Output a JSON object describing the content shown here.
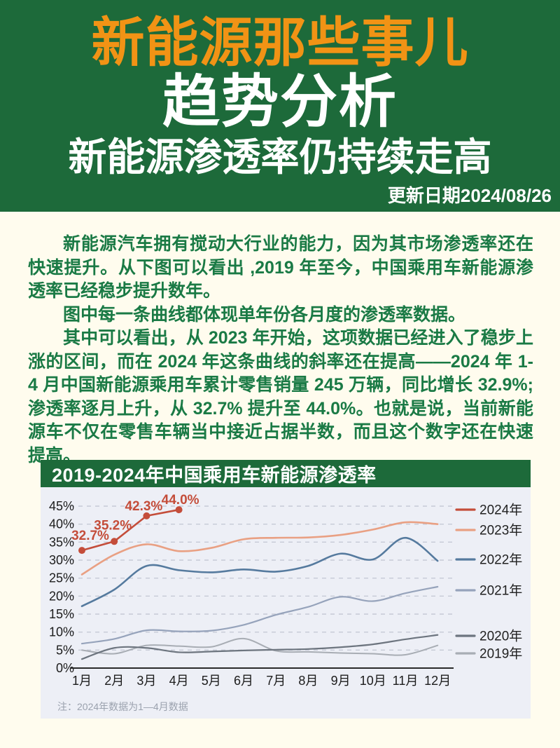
{
  "header": {
    "brand": "新能源那些事儿",
    "title": "趋势分析",
    "subtitle": "新能源渗透率仍持续走高",
    "update_date": "更新日期2024/08/26",
    "bg_color": "#1d6a3a",
    "brand_color": "#f19315"
  },
  "article": {
    "text_color": "#1a7a45",
    "paragraphs": [
      "新能源汽车拥有搅动大行业的能力，因为其市场渗透率还在快速提升。从下图可以看出 ,2019 年至今，中国乘用车新能源渗透率已经稳步提升数年。",
      "图中每一条曲线都体现单年份各月度的渗透率数据。",
      "其中可以看出，从 2023 年开始，这项数据已经进入了稳步上涨的区间，而在 2024 年这条曲线的斜率还在提高——2024 年 1-4 月中国新能源乘用车累计零售销量 245 万辆，同比增长 32.9%; 渗透率逐月上升，从 32.7% 提升至 44.0%。也就是说，当前新能源车不仅在零售车辆当中接近占据半数，而且这个数字还在快速提高。"
    ]
  },
  "chart_data": {
    "type": "line",
    "title": "2019-2024年中国乘用车新能源渗透率",
    "note": "注：2024年数据为1—4月数据",
    "categories": [
      "1月",
      "2月",
      "3月",
      "4月",
      "5月",
      "6月",
      "7月",
      "8月",
      "9月",
      "10月",
      "11月",
      "12月"
    ],
    "yticks": [
      "0%",
      "5%",
      "10%",
      "15%",
      "20%",
      "25%",
      "30%",
      "35%",
      "40%",
      "45%"
    ],
    "ylim": [
      0,
      47
    ],
    "grid": "horizontal-dashed",
    "legend_position": "right",
    "series": [
      {
        "name": "2024年",
        "color": "#c44d3a",
        "markers": true,
        "straight": true,
        "values": [
          32.7,
          35.2,
          42.3,
          44.0
        ],
        "data_labels": [
          "32.7%",
          "35.2%",
          "42.3%",
          "44.0%"
        ]
      },
      {
        "name": "2023年",
        "color": "#e9a083",
        "values": [
          26.0,
          31.5,
          34.4,
          32.5,
          33.4,
          35.8,
          36.2,
          36.3,
          37.0,
          38.5,
          40.5,
          40.0
        ]
      },
      {
        "name": "2022年",
        "color": "#557a9e",
        "values": [
          17.2,
          21.8,
          28.4,
          27.2,
          26.6,
          27.4,
          26.8,
          28.4,
          31.8,
          30.2,
          36.2,
          29.8
        ]
      },
      {
        "name": "2021年",
        "color": "#96a3bb",
        "values": [
          6.8,
          8.1,
          10.5,
          10.2,
          10.4,
          12.0,
          14.8,
          17.0,
          19.8,
          18.6,
          20.8,
          22.6
        ]
      },
      {
        "name": "2020年",
        "color": "#6d757f",
        "values": [
          2.5,
          5.6,
          5.6,
          4.4,
          4.6,
          4.9,
          5.1,
          5.3,
          5.8,
          6.6,
          8.0,
          9.2
        ]
      },
      {
        "name": "2019年",
        "color": "#a8adb4",
        "values": [
          5.0,
          4.0,
          6.3,
          6.1,
          5.9,
          8.2,
          4.8,
          4.5,
          4.2,
          4.0,
          3.7,
          6.3
        ]
      }
    ]
  }
}
